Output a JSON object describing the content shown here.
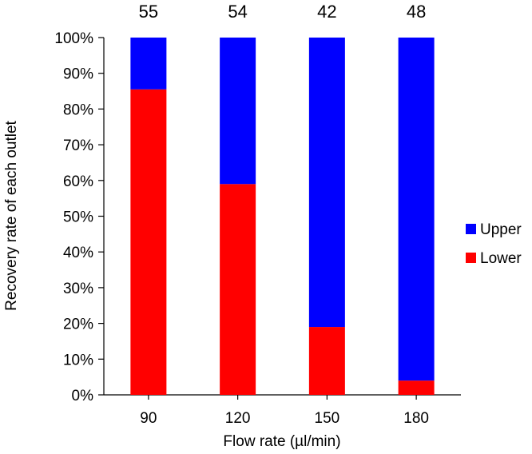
{
  "chart_data": {
    "type": "bar",
    "stacked": true,
    "percent": true,
    "categories": [
      "90",
      "120",
      "150",
      "180"
    ],
    "series": [
      {
        "name": "Lower",
        "values": [
          85.5,
          59,
          19,
          4
        ],
        "color": "#ff0000"
      },
      {
        "name": "Upper",
        "values": [
          14.5,
          41,
          81,
          96
        ],
        "color": "#0000ff"
      }
    ],
    "top_labels": [
      "55",
      "54",
      "42",
      "48"
    ],
    "xlabel": "Flow rate (µl/min)",
    "ylabel": "Recovery rate of each outlet",
    "ylim": [
      0,
      100
    ],
    "yticks": [
      "0%",
      "10%",
      "20%",
      "30%",
      "40%",
      "50%",
      "60%",
      "70%",
      "80%",
      "90%",
      "100%"
    ],
    "grid": false,
    "legend": {
      "position": "right",
      "order": [
        "Upper",
        "Lower"
      ]
    }
  }
}
